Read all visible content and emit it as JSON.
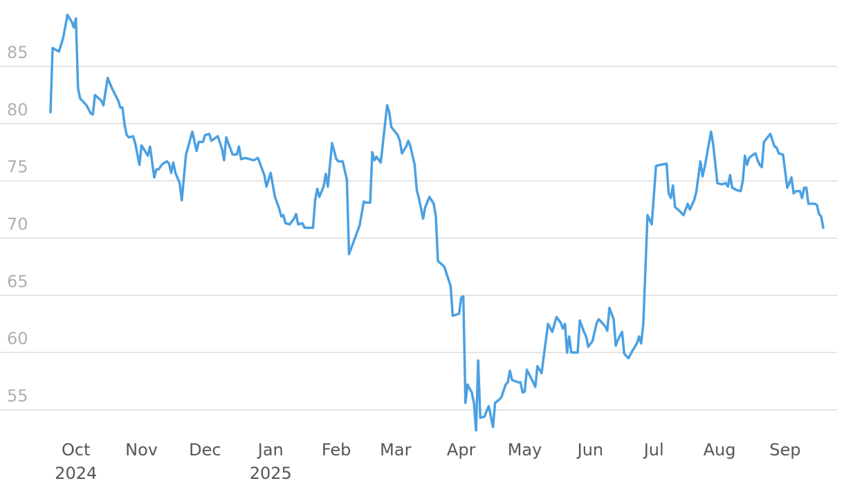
{
  "chart_data": {
    "type": "line",
    "color": "#4aa0e2",
    "grid": true,
    "xlim": [
      0,
      365
    ],
    "xticks": [
      {
        "value": 12,
        "label": "Oct",
        "sublabel": "2024"
      },
      {
        "value": 43,
        "label": "Nov"
      },
      {
        "value": 73,
        "label": "Dec"
      },
      {
        "value": 104,
        "label": "Jan",
        "sublabel": "2025"
      },
      {
        "value": 135,
        "label": "Feb"
      },
      {
        "value": 163,
        "label": "Mar"
      },
      {
        "value": 194,
        "label": "Apr"
      },
      {
        "value": 224,
        "label": "May"
      },
      {
        "value": 255,
        "label": "Jun"
      },
      {
        "value": 285,
        "label": "Jul"
      },
      {
        "value": 316,
        "label": "Aug"
      },
      {
        "value": 347,
        "label": "Sep"
      }
    ],
    "ylim": [
      52.8,
      89.8
    ],
    "yticks": [
      55,
      60,
      65,
      70,
      75,
      80,
      85
    ],
    "x": [
      0,
      1,
      4,
      6,
      8,
      10,
      11,
      12,
      13,
      14,
      17,
      19,
      20,
      21,
      24,
      25,
      27,
      29,
      32,
      33,
      34,
      35,
      36,
      37,
      39,
      40,
      42,
      43,
      45,
      46,
      47,
      49,
      50,
      51,
      53,
      55,
      56,
      57,
      58,
      59,
      61,
      62,
      64,
      67,
      69,
      70,
      72,
      73,
      75,
      76,
      79,
      81,
      82,
      83,
      86,
      88,
      89,
      90,
      92,
      96,
      98,
      101,
      102,
      104,
      106,
      108,
      109,
      110,
      111,
      113,
      115,
      116,
      117,
      119,
      120,
      124,
      125,
      126,
      127,
      129,
      130,
      131,
      133,
      135,
      136,
      138,
      140,
      141,
      144,
      146,
      148,
      149,
      151,
      152,
      153,
      154,
      156,
      159,
      160,
      161,
      164,
      165,
      166,
      168,
      169,
      170,
      172,
      173,
      174,
      176,
      177,
      179,
      181,
      182,
      183,
      186,
      189,
      190,
      193,
      194,
      195,
      196,
      197,
      199,
      200,
      201,
      202,
      203,
      205,
      206,
      207,
      209,
      210,
      212,
      213,
      215,
      216,
      217,
      218,
      221,
      222,
      223,
      224,
      225,
      228,
      229,
      230,
      232,
      233,
      235,
      237,
      239,
      241,
      242,
      243,
      244,
      245,
      246,
      249,
      250,
      252,
      253,
      254,
      256,
      257,
      258,
      259,
      260,
      262,
      263,
      264,
      266,
      267,
      268,
      270,
      271,
      273,
      275,
      277,
      278,
      279,
      280,
      282,
      284,
      286,
      288,
      291,
      292,
      293,
      294,
      295,
      297,
      299,
      301,
      302,
      304,
      305,
      307,
      308,
      309,
      312,
      313,
      315,
      317,
      319,
      320,
      321,
      322,
      324,
      326,
      327,
      328,
      329,
      330,
      332,
      333,
      334,
      335,
      336,
      337,
      340,
      342,
      343,
      344,
      346,
      348,
      349,
      350,
      351,
      352,
      354,
      355,
      356,
      357,
      358,
      361,
      362,
      363,
      364,
      365
    ],
    "values": [
      81.0,
      86.6,
      86.3,
      87.5,
      89.5,
      88.9,
      88.4,
      89.2,
      83.1,
      82.2,
      81.6,
      80.9,
      80.8,
      82.5,
      82.0,
      81.6,
      84.0,
      83.1,
      82.0,
      81.4,
      81.4,
      79.9,
      79.0,
      78.8,
      78.9,
      78.3,
      76.4,
      78.1,
      77.5,
      77.2,
      78.0,
      75.3,
      76.0,
      76.0,
      76.5,
      76.7,
      76.5,
      75.7,
      76.6,
      75.7,
      74.8,
      73.3,
      77.3,
      79.3,
      77.6,
      78.4,
      78.4,
      79.0,
      79.1,
      78.5,
      78.9,
      77.8,
      76.8,
      78.8,
      77.3,
      77.3,
      78.0,
      76.9,
      77.0,
      76.8,
      77.0,
      75.5,
      74.5,
      75.7,
      73.6,
      72.6,
      71.9,
      72.0,
      71.3,
      71.2,
      71.7,
      72.1,
      71.2,
      71.3,
      70.9,
      70.9,
      73.3,
      74.3,
      73.6,
      74.5,
      75.6,
      74.5,
      78.3,
      76.9,
      76.7,
      76.7,
      75.1,
      68.6,
      70.1,
      71.1,
      73.2,
      73.1,
      73.1,
      77.5,
      76.8,
      77.1,
      76.6,
      81.6,
      81.0,
      79.7,
      79.0,
      78.5,
      77.4,
      78.0,
      78.5,
      78.0,
      76.4,
      74.2,
      73.5,
      71.7,
      72.7,
      73.6,
      73.0,
      71.9,
      68.0,
      67.5,
      65.8,
      63.2,
      63.4,
      64.8,
      64.9,
      55.6,
      57.2,
      56.5,
      55.6,
      53.2,
      59.3,
      54.3,
      54.4,
      54.9,
      55.3,
      53.5,
      55.6,
      55.9,
      56.1,
      57.2,
      57.4,
      58.4,
      57.6,
      57.4,
      57.4,
      56.5,
      56.6,
      58.5,
      57.4,
      57.0,
      58.8,
      58.2,
      59.7,
      62.5,
      61.8,
      63.1,
      62.6,
      62.1,
      62.5,
      60.0,
      61.4,
      60.0,
      60.0,
      62.8,
      61.8,
      61.4,
      60.5,
      61.0,
      61.8,
      62.6,
      62.9,
      62.7,
      62.3,
      61.9,
      63.9,
      62.9,
      60.6,
      61.1,
      61.8,
      59.9,
      59.5,
      60.2,
      60.8,
      61.4,
      60.8,
      62.5,
      72.0,
      71.2,
      76.3,
      76.4,
      76.5,
      73.9,
      73.5,
      74.6,
      72.7,
      72.4,
      72.0,
      73.0,
      72.5,
      73.3,
      74.0,
      76.7,
      75.4,
      76.2,
      79.3,
      78.2,
      74.8,
      74.7,
      74.8,
      74.5,
      75.5,
      74.4,
      74.2,
      74.1,
      75.0,
      77.2,
      76.4,
      77.0,
      77.3,
      77.4,
      76.8,
      76.4,
      76.2,
      78.4,
      79.1,
      78.0,
      77.9,
      77.4,
      77.3,
      74.4,
      74.8,
      75.3,
      73.9,
      74.1,
      74.1,
      73.5,
      74.4,
      74.4,
      73.0,
      73.0,
      72.9,
      72.1,
      71.9,
      70.9
    ]
  }
}
